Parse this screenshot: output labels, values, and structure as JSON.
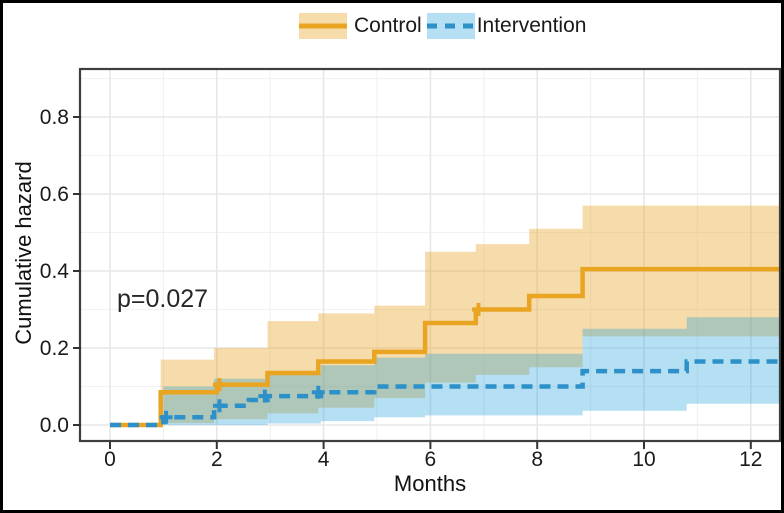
{
  "figure": {
    "background": "#ffffff",
    "outer_border_color": "#000000",
    "panel_border_color": "#3e3e3e",
    "grid_major_color": "#e7e7e7",
    "grid_minor_color": "#f2f2f2",
    "text_color": "#1a1a1a",
    "p_value": "p=0.027"
  },
  "legend": {
    "control_label": "Control",
    "intervention_label": "Intervention"
  },
  "chart_data": {
    "type": "line",
    "subtype": "step-cumulative-hazard-with-confidence-bands",
    "title": "",
    "xlabel": "Months",
    "ylabel": "Cumulative hazard",
    "xlim": [
      -0.56,
      12.55
    ],
    "ylim": [
      -0.042,
      0.925
    ],
    "x_ticks": [
      0,
      2,
      4,
      6,
      8,
      10,
      12
    ],
    "x_minor_ticks": [
      1,
      3,
      5,
      7,
      9,
      11
    ],
    "y_ticks": [
      "0.0",
      "0.2",
      "0.4",
      "0.6",
      "0.8"
    ],
    "y_minor_ticks": [
      0.1,
      0.3,
      0.5,
      0.7,
      0.9
    ],
    "grid": "major+minor",
    "legend_position": "top-center",
    "annotation": {
      "text": "p=0.027",
      "x": 1.1,
      "y": 0.32
    },
    "series": [
      {
        "name": "Control",
        "line_style": "solid",
        "line_color": "#E9A422",
        "band_color": "rgba(233,164,35,0.38)",
        "steps": [
          [
            0,
            0
          ],
          [
            0.95,
            0.085
          ],
          [
            2.0,
            0.105
          ],
          [
            2.95,
            0.135
          ],
          [
            3.9,
            0.165
          ],
          [
            4.95,
            0.19
          ],
          [
            5.9,
            0.265
          ],
          [
            6.85,
            0.3
          ],
          [
            7.85,
            0.335
          ],
          [
            8.85,
            0.405
          ],
          [
            12.55,
            0.405
          ]
        ],
        "band": [
          [
            0.95,
            0.005,
            0.17
          ],
          [
            1.95,
            0.015,
            0.2
          ],
          [
            2.95,
            0.03,
            0.27
          ],
          [
            3.9,
            0.045,
            0.29
          ],
          [
            4.95,
            0.07,
            0.31
          ],
          [
            5.9,
            0.11,
            0.45
          ],
          [
            6.85,
            0.13,
            0.47
          ],
          [
            7.85,
            0.15,
            0.51
          ],
          [
            8.85,
            0.23,
            0.57
          ],
          [
            12.55,
            0.23,
            0.57
          ]
        ],
        "censor_marks": [
          [
            2.05,
            0.105
          ],
          [
            6.9,
            0.3
          ]
        ]
      },
      {
        "name": "Intervention",
        "line_style": "dashed",
        "line_color": "#2E90C8",
        "band_color": "rgba(30,158,216,0.33)",
        "steps": [
          [
            0,
            0
          ],
          [
            1.0,
            0.02
          ],
          [
            1.95,
            0.05
          ],
          [
            2.6,
            0.065
          ],
          [
            2.95,
            0.075
          ],
          [
            3.95,
            0.085
          ],
          [
            4.95,
            0.1
          ],
          [
            8.85,
            0.14
          ],
          [
            10.8,
            0.165
          ],
          [
            12.55,
            0.165
          ]
        ],
        "band": [
          [
            1.0,
            0.0,
            0.1
          ],
          [
            1.95,
            0.0,
            0.12
          ],
          [
            2.95,
            0.004,
            0.135
          ],
          [
            3.95,
            0.01,
            0.155
          ],
          [
            4.95,
            0.02,
            0.175
          ],
          [
            5.9,
            0.025,
            0.185
          ],
          [
            8.85,
            0.037,
            0.25
          ],
          [
            10.8,
            0.055,
            0.28
          ],
          [
            12.55,
            0.055,
            0.28
          ]
        ],
        "censor_marks": [
          [
            1.05,
            0.02
          ],
          [
            2.05,
            0.05
          ],
          [
            2.9,
            0.075
          ],
          [
            3.9,
            0.085
          ]
        ]
      }
    ]
  }
}
